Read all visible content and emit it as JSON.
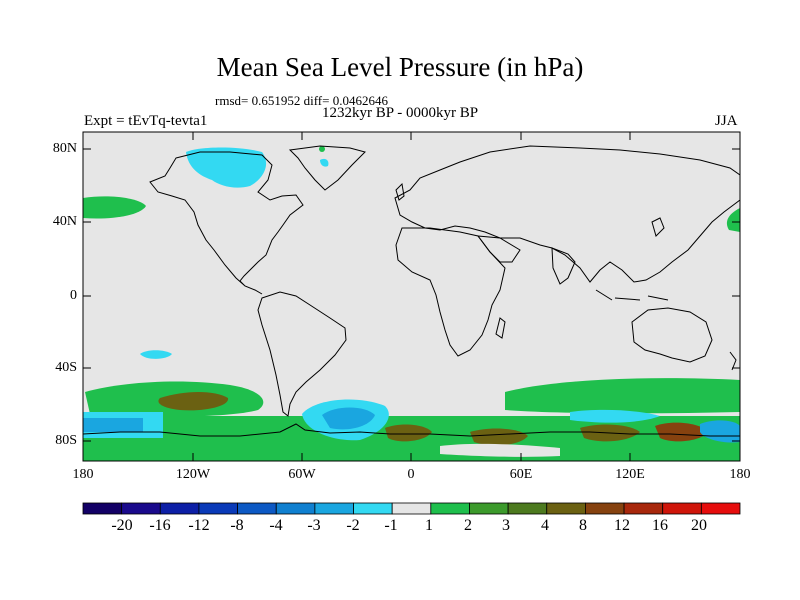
{
  "title": "Mean Sea Level Pressure (in hPa)",
  "stats_line": "rmsd= 0.651952 diff= 0.0462646",
  "period_line": "1232kyr BP - 0000kyr BP",
  "experiment": "Expt = tEvTq-tevta1",
  "season": "JJA",
  "axes": {
    "lat_ticks": [
      "80N",
      "40N",
      "0",
      "40S",
      "80S"
    ],
    "lon_ticks": [
      "180",
      "120W",
      "60W",
      "0",
      "60E",
      "120E",
      "180"
    ]
  },
  "colorbar": {
    "labels": [
      "-20",
      "-16",
      "-12",
      "-8",
      "-4",
      "-3",
      "-2",
      "-1",
      "1",
      "2",
      "3",
      "4",
      "8",
      "12",
      "16",
      "20"
    ],
    "colors": [
      "#130066",
      "#1a0a8c",
      "#0d1fa6",
      "#0a3ab8",
      "#0d59c4",
      "#1080d0",
      "#1aa6e0",
      "#33d9f2",
      "#e6e6e6",
      "#1fbf4d",
      "#3c9a2c",
      "#4d7a1f",
      "#6b6112",
      "#86420f",
      "#a8280c",
      "#cf150a",
      "#e60d0d"
    ]
  },
  "colors": {
    "land_neutral": "#e6e6e6",
    "green": "#1fbf4d",
    "dark_olive": "#6b6112",
    "cyan": "#33d9f2",
    "blue": "#1aa6e0"
  }
}
